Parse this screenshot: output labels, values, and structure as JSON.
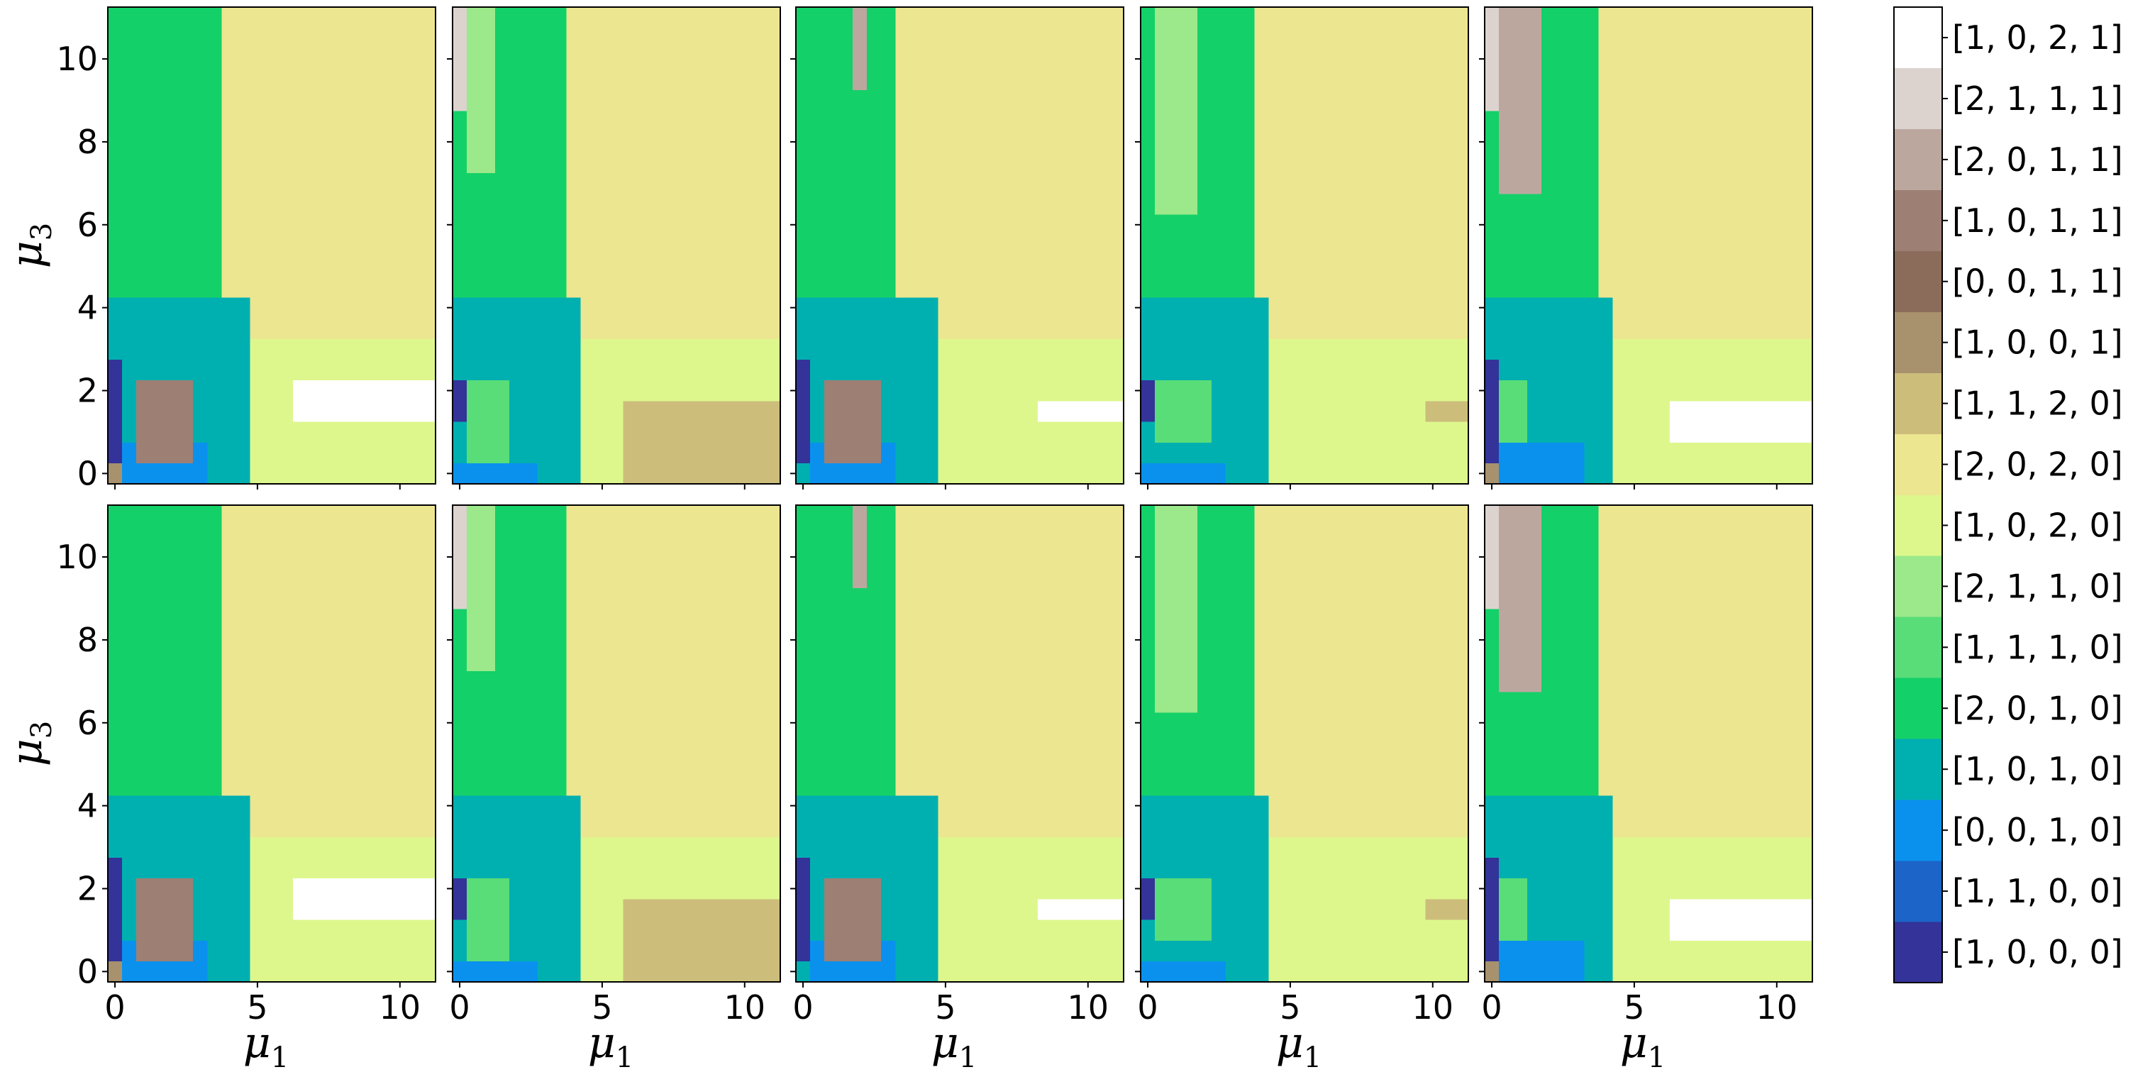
{
  "chart_data": {
    "type": "heatmap",
    "layout": {
      "rows": 2,
      "cols": 5
    },
    "xlabel": "μ1",
    "ylabel": "μ3",
    "xlim": [
      -0.25,
      11.25
    ],
    "ylim": [
      -0.25,
      11.25
    ],
    "xticks": [
      0,
      5,
      10
    ],
    "yticks": [
      0,
      2,
      4,
      6,
      8,
      10
    ],
    "grid_step": 0.5,
    "grid_size": 23,
    "colorbar": {
      "labels": [
        "[1, 0, 0, 0]",
        "[1, 1, 0, 0]",
        "[0, 0, 1, 0]",
        "[1, 0, 1, 0]",
        "[2, 0, 1, 0]",
        "[1, 1, 1, 0]",
        "[2, 1, 1, 0]",
        "[1, 0, 2, 0]",
        "[2, 0, 2, 0]",
        "[1, 1, 2, 0]",
        "[1, 0, 0, 1]",
        "[0, 0, 1, 1]",
        "[1, 0, 1, 1]",
        "[2, 0, 1, 1]",
        "[2, 1, 1, 1]",
        "[1, 0, 2, 1]"
      ],
      "colors": [
        "#333399",
        "#1c64c8",
        "#0a91ee",
        "#00b0b0",
        "#14d068",
        "#58dd78",
        "#9be98a",
        "#ddf78d",
        "#ece690",
        "#ccbd7b",
        "#a8916d",
        "#8b6b5a",
        "#9e7f74",
        "#bca79f",
        "#dcd3cf",
        "#ffffff"
      ]
    },
    "panels": [
      {
        "regions": [
          {
            "c": 8,
            "x": [
              3.7,
              11.25
            ],
            "y": [
              3.5,
              11.25
            ]
          },
          {
            "c": 4,
            "x": [
              -0.25,
              3.75
            ],
            "y": [
              4.25,
              11.25
            ]
          },
          {
            "c": 7,
            "x": [
              4.25,
              11.25
            ],
            "y": [
              -0.25,
              3.5
            ]
          },
          {
            "c": 3,
            "x": [
              -0.25,
              5.0
            ],
            "y": [
              -0.25,
              4.25
            ]
          },
          {
            "c": 0,
            "x": [
              -0.25,
              0.25
            ],
            "y": [
              0.25,
              2.75
            ]
          },
          {
            "c": 10,
            "x": [
              -0.25,
              0.25
            ],
            "y": [
              -0.25,
              0.25
            ]
          },
          {
            "c": 2,
            "x": [
              0.25,
              3.5
            ],
            "y": [
              -0.25,
              0.75
            ]
          },
          {
            "c": 12,
            "x": [
              1.0,
              2.75
            ],
            "y": [
              0.5,
              2.5
            ]
          },
          {
            "c": 15,
            "x": [
              6.25,
              11.25
            ],
            "y": [
              1.25,
              2.5
            ]
          }
        ]
      },
      {
        "regions": [
          {
            "c": 8,
            "x": [
              4.0,
              11.25
            ],
            "y": [
              3.5,
              11.25
            ]
          },
          {
            "c": 4,
            "x": [
              -0.25,
              4.0
            ],
            "y": [
              4.25,
              11.25
            ]
          },
          {
            "c": 6,
            "x": [
              0.25,
              1.5
            ],
            "y": [
              7.25,
              11.25
            ]
          },
          {
            "c": 14,
            "x": [
              -0.25,
              0.5
            ],
            "y": [
              9.0,
              11.25
            ]
          },
          {
            "c": 7,
            "x": [
              4.25,
              11.25
            ],
            "y": [
              -0.25,
              3.5
            ]
          },
          {
            "c": 9,
            "x": [
              6.0,
              11.25
            ],
            "y": [
              -0.25,
              2.0
            ]
          },
          {
            "c": 3,
            "x": [
              -0.25,
              4.25
            ],
            "y": [
              -0.25,
              4.25
            ]
          },
          {
            "c": 5,
            "x": [
              0.25,
              2.0
            ],
            "y": [
              0.5,
              2.5
            ]
          },
          {
            "c": 0,
            "x": [
              -0.25,
              0.5
            ],
            "y": [
              1.25,
              2.25
            ]
          },
          {
            "c": 2,
            "x": [
              -0.25,
              3.0
            ],
            "y": [
              -0.25,
              0.25
            ]
          }
        ]
      },
      {
        "regions": [
          {
            "c": 8,
            "x": [
              3.5,
              11.25
            ],
            "y": [
              3.5,
              11.25
            ]
          },
          {
            "c": 4,
            "x": [
              -0.25,
              3.5
            ],
            "y": [
              4.25,
              11.25
            ]
          },
          {
            "c": 13,
            "x": [
              1.75,
              2.25
            ],
            "y": [
              9.5,
              11.25
            ]
          },
          {
            "c": 7,
            "x": [
              4.25,
              11.25
            ],
            "y": [
              -0.25,
              3.5
            ]
          },
          {
            "c": 3,
            "x": [
              -0.25,
              4.75
            ],
            "y": [
              -0.25,
              4.25
            ]
          },
          {
            "c": 0,
            "x": [
              -0.25,
              0.25
            ],
            "y": [
              0.25,
              2.75
            ]
          },
          {
            "c": 2,
            "x": [
              0.25,
              3.5
            ],
            "y": [
              -0.25,
              0.75
            ]
          },
          {
            "c": 12,
            "x": [
              1.0,
              2.75
            ],
            "y": [
              0.5,
              2.5
            ]
          },
          {
            "c": 15,
            "x": [
              8.5,
              11.25
            ],
            "y": [
              1.25,
              1.75
            ]
          }
        ]
      },
      {
        "regions": [
          {
            "c": 8,
            "x": [
              4.0,
              11.25
            ],
            "y": [
              3.5,
              11.25
            ]
          },
          {
            "c": 4,
            "x": [
              -0.25,
              4.0
            ],
            "y": [
              4.25,
              11.25
            ]
          },
          {
            "c": 6,
            "x": [
              0.25,
              2.0
            ],
            "y": [
              6.5,
              11.25
            ]
          },
          {
            "c": 7,
            "x": [
              4.25,
              11.25
            ],
            "y": [
              -0.25,
              3.5
            ]
          },
          {
            "c": 9,
            "x": [
              10.0,
              11.25
            ],
            "y": [
              1.25,
              1.75
            ]
          },
          {
            "c": 3,
            "x": [
              -0.25,
              4.25
            ],
            "y": [
              -0.25,
              4.25
            ]
          },
          {
            "c": 5,
            "x": [
              0.5,
              2.5
            ],
            "y": [
              0.75,
              2.5
            ]
          },
          {
            "c": 0,
            "x": [
              -0.25,
              0.5
            ],
            "y": [
              1.25,
              2.25
            ]
          },
          {
            "c": 2,
            "x": [
              -0.25,
              3.0
            ],
            "y": [
              -0.25,
              0.25
            ]
          }
        ]
      },
      {
        "regions": [
          {
            "c": 8,
            "x": [
              3.75,
              11.25
            ],
            "y": [
              3.5,
              11.25
            ]
          },
          {
            "c": 4,
            "x": [
              -0.25,
              3.75
            ],
            "y": [
              4.25,
              11.25
            ]
          },
          {
            "c": 13,
            "x": [
              0.25,
              2.0
            ],
            "y": [
              6.75,
              11.25
            ]
          },
          {
            "c": 14,
            "x": [
              -0.25,
              0.5
            ],
            "y": [
              9.0,
              11.25
            ]
          },
          {
            "c": 7,
            "x": [
              4.25,
              11.25
            ],
            "y": [
              -0.25,
              3.5
            ]
          },
          {
            "c": 3,
            "x": [
              -0.25,
              4.5
            ],
            "y": [
              -0.25,
              4.25
            ]
          },
          {
            "c": 5,
            "x": [
              0.25,
              1.5
            ],
            "y": [
              0.75,
              2.25
            ]
          },
          {
            "c": 0,
            "x": [
              -0.25,
              0.25
            ],
            "y": [
              0.25,
              2.75
            ]
          },
          {
            "c": 10,
            "x": [
              -0.25,
              0.25
            ],
            "y": [
              -0.25,
              0.25
            ]
          },
          {
            "c": 2,
            "x": [
              0.25,
              3.5
            ],
            "y": [
              -0.25,
              0.75
            ]
          },
          {
            "c": 15,
            "x": [
              6.5,
              11.25
            ],
            "y": [
              1.0,
              2.0
            ]
          }
        ]
      },
      {
        "regions": [
          {
            "c": 8,
            "x": [
              3.7,
              11.25
            ],
            "y": [
              3.5,
              11.25
            ]
          },
          {
            "c": 4,
            "x": [
              -0.25,
              3.75
            ],
            "y": [
              4.25,
              11.25
            ]
          },
          {
            "c": 7,
            "x": [
              4.25,
              11.25
            ],
            "y": [
              -0.25,
              3.5
            ]
          },
          {
            "c": 3,
            "x": [
              -0.25,
              5.0
            ],
            "y": [
              -0.25,
              4.25
            ]
          },
          {
            "c": 0,
            "x": [
              -0.25,
              0.25
            ],
            "y": [
              0.25,
              2.75
            ]
          },
          {
            "c": 10,
            "x": [
              -0.25,
              0.25
            ],
            "y": [
              -0.25,
              0.25
            ]
          },
          {
            "c": 2,
            "x": [
              0.25,
              3.5
            ],
            "y": [
              -0.25,
              0.75
            ]
          },
          {
            "c": 12,
            "x": [
              1.0,
              2.75
            ],
            "y": [
              0.5,
              2.5
            ]
          },
          {
            "c": 15,
            "x": [
              6.25,
              11.25
            ],
            "y": [
              1.25,
              2.5
            ]
          }
        ]
      },
      {
        "regions": [
          {
            "c": 8,
            "x": [
              4.0,
              11.25
            ],
            "y": [
              3.5,
              11.25
            ]
          },
          {
            "c": 4,
            "x": [
              -0.25,
              4.0
            ],
            "y": [
              4.25,
              11.25
            ]
          },
          {
            "c": 6,
            "x": [
              0.25,
              1.5
            ],
            "y": [
              7.25,
              11.25
            ]
          },
          {
            "c": 14,
            "x": [
              -0.25,
              0.5
            ],
            "y": [
              9.0,
              11.25
            ]
          },
          {
            "c": 7,
            "x": [
              4.25,
              11.25
            ],
            "y": [
              -0.25,
              3.5
            ]
          },
          {
            "c": 9,
            "x": [
              6.0,
              11.25
            ],
            "y": [
              -0.25,
              2.0
            ]
          },
          {
            "c": 3,
            "x": [
              -0.25,
              4.25
            ],
            "y": [
              -0.25,
              4.25
            ]
          },
          {
            "c": 5,
            "x": [
              0.25,
              2.0
            ],
            "y": [
              0.5,
              2.5
            ]
          },
          {
            "c": 0,
            "x": [
              -0.25,
              0.5
            ],
            "y": [
              1.25,
              2.25
            ]
          },
          {
            "c": 2,
            "x": [
              -0.25,
              3.0
            ],
            "y": [
              -0.25,
              0.25
            ]
          }
        ]
      },
      {
        "regions": [
          {
            "c": 8,
            "x": [
              3.5,
              11.25
            ],
            "y": [
              3.5,
              11.25
            ]
          },
          {
            "c": 4,
            "x": [
              -0.25,
              3.5
            ],
            "y": [
              4.25,
              11.25
            ]
          },
          {
            "c": 13,
            "x": [
              1.75,
              2.25
            ],
            "y": [
              9.5,
              11.25
            ]
          },
          {
            "c": 7,
            "x": [
              4.25,
              11.25
            ],
            "y": [
              -0.25,
              3.5
            ]
          },
          {
            "c": 3,
            "x": [
              -0.25,
              4.75
            ],
            "y": [
              -0.25,
              4.25
            ]
          },
          {
            "c": 0,
            "x": [
              -0.25,
              0.25
            ],
            "y": [
              0.25,
              2.75
            ]
          },
          {
            "c": 2,
            "x": [
              0.25,
              3.5
            ],
            "y": [
              -0.25,
              0.75
            ]
          },
          {
            "c": 12,
            "x": [
              1.0,
              2.75
            ],
            "y": [
              0.5,
              2.5
            ]
          },
          {
            "c": 15,
            "x": [
              8.5,
              11.25
            ],
            "y": [
              1.25,
              1.75
            ]
          }
        ]
      },
      {
        "regions": [
          {
            "c": 8,
            "x": [
              4.0,
              11.25
            ],
            "y": [
              3.5,
              11.25
            ]
          },
          {
            "c": 4,
            "x": [
              -0.25,
              4.0
            ],
            "y": [
              4.25,
              11.25
            ]
          },
          {
            "c": 6,
            "x": [
              0.25,
              2.0
            ],
            "y": [
              6.5,
              11.25
            ]
          },
          {
            "c": 7,
            "x": [
              4.25,
              11.25
            ],
            "y": [
              -0.25,
              3.5
            ]
          },
          {
            "c": 9,
            "x": [
              10.0,
              11.25
            ],
            "y": [
              1.25,
              1.75
            ]
          },
          {
            "c": 3,
            "x": [
              -0.25,
              4.25
            ],
            "y": [
              -0.25,
              4.25
            ]
          },
          {
            "c": 5,
            "x": [
              0.5,
              2.5
            ],
            "y": [
              0.75,
              2.5
            ]
          },
          {
            "c": 0,
            "x": [
              -0.25,
              0.5
            ],
            "y": [
              1.25,
              2.25
            ]
          },
          {
            "c": 2,
            "x": [
              -0.25,
              3.0
            ],
            "y": [
              -0.25,
              0.25
            ]
          }
        ]
      },
      {
        "regions": [
          {
            "c": 8,
            "x": [
              3.75,
              11.25
            ],
            "y": [
              3.5,
              11.25
            ]
          },
          {
            "c": 4,
            "x": [
              -0.25,
              3.75
            ],
            "y": [
              4.25,
              11.25
            ]
          },
          {
            "c": 13,
            "x": [
              0.25,
              2.0
            ],
            "y": [
              6.75,
              11.25
            ]
          },
          {
            "c": 14,
            "x": [
              -0.25,
              0.5
            ],
            "y": [
              9.0,
              11.25
            ]
          },
          {
            "c": 7,
            "x": [
              4.25,
              11.25
            ],
            "y": [
              -0.25,
              3.5
            ]
          },
          {
            "c": 3,
            "x": [
              -0.25,
              4.5
            ],
            "y": [
              -0.25,
              4.25
            ]
          },
          {
            "c": 5,
            "x": [
              0.25,
              1.5
            ],
            "y": [
              0.75,
              2.25
            ]
          },
          {
            "c": 0,
            "x": [
              -0.25,
              0.25
            ],
            "y": [
              0.25,
              2.75
            ]
          },
          {
            "c": 10,
            "x": [
              -0.25,
              0.25
            ],
            "y": [
              -0.25,
              0.25
            ]
          },
          {
            "c": 2,
            "x": [
              0.25,
              3.5
            ],
            "y": [
              -0.25,
              0.75
            ]
          },
          {
            "c": 15,
            "x": [
              6.5,
              11.25
            ],
            "y": [
              1.0,
              2.0
            ]
          }
        ]
      }
    ]
  }
}
